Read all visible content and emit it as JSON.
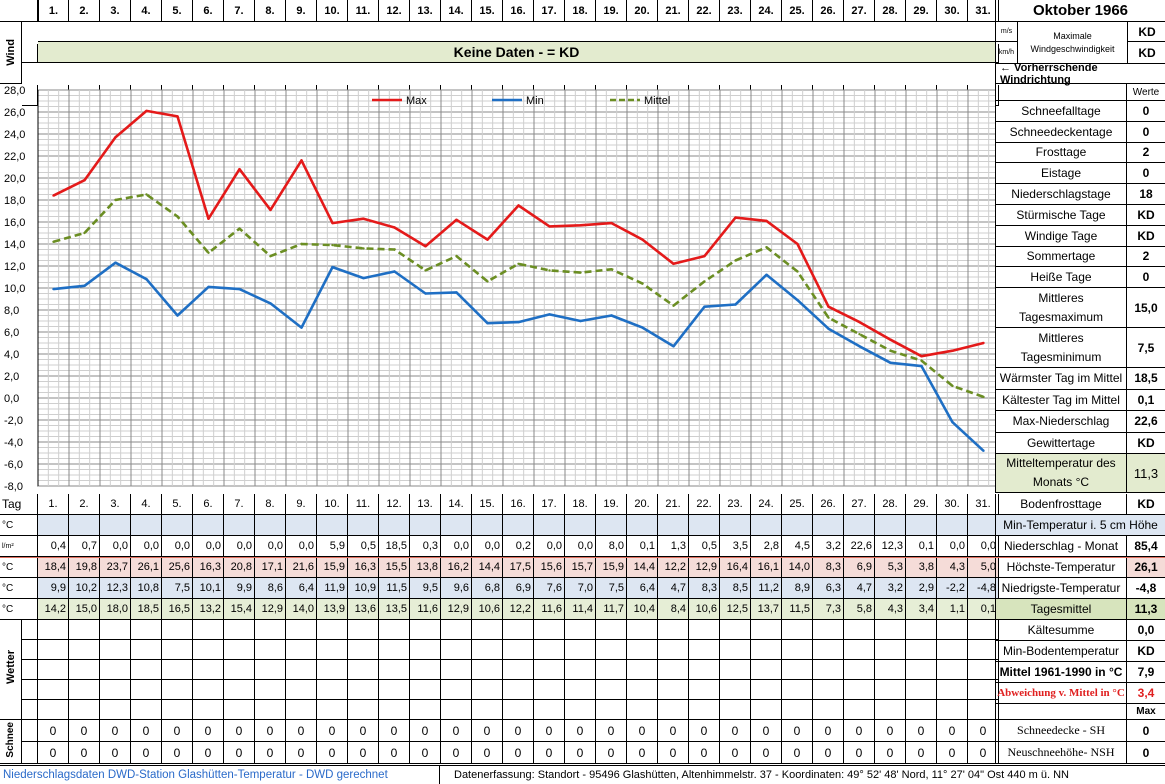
{
  "title": "Oktober 1966",
  "days": [
    "1.",
    "2.",
    "3.",
    "4.",
    "5.",
    "6.",
    "7.",
    "8.",
    "9.",
    "10.",
    "11.",
    "12.",
    "13.",
    "14.",
    "15.",
    "16.",
    "17.",
    "18.",
    "19.",
    "20.",
    "21.",
    "22.",
    "23.",
    "24.",
    "25.",
    "26.",
    "27.",
    "28.",
    "29.",
    "30.",
    "31."
  ],
  "wind": {
    "label": "Wind",
    "banner": "Keine Daten -  = KD",
    "unit_ms": "m/s",
    "unit_kmh": "km/h",
    "max_label_1": "Maximale",
    "max_label_2": "Windgeschwindigkeit",
    "max_ms": "KD",
    "max_kmh": "KD",
    "direction_label": "← Vorherrschende Windrichtung"
  },
  "chart_data": {
    "type": "line",
    "x": [
      1,
      2,
      3,
      4,
      5,
      6,
      7,
      8,
      9,
      10,
      11,
      12,
      13,
      14,
      15,
      16,
      17,
      18,
      19,
      20,
      21,
      22,
      23,
      24,
      25,
      26,
      27,
      28,
      29,
      30,
      31
    ],
    "ylim": [
      -8,
      28
    ],
    "yticks": [
      "28,0",
      "26,0",
      "24,0",
      "22,0",
      "20,0",
      "18,0",
      "16,0",
      "14,0",
      "12,0",
      "10,0",
      "8,0",
      "6,0",
      "4,0",
      "2,0",
      "0,0",
      "-2,0",
      "-4,0",
      "-6,0",
      "-8,0"
    ],
    "grid": true,
    "legend_position": "top",
    "series": [
      {
        "name": "Max",
        "color": "#e41a1a",
        "dash": false,
        "values": [
          18.4,
          19.8,
          23.7,
          26.1,
          25.6,
          16.3,
          20.8,
          17.1,
          21.6,
          15.9,
          16.3,
          15.5,
          13.8,
          16.2,
          14.4,
          17.5,
          15.6,
          15.7,
          15.9,
          14.4,
          12.2,
          12.9,
          16.4,
          16.1,
          14.0,
          8.3,
          6.9,
          5.3,
          3.8,
          4.3,
          5.0
        ]
      },
      {
        "name": "Min",
        "color": "#1f6fc4",
        "dash": false,
        "values": [
          9.9,
          10.2,
          12.3,
          10.8,
          7.5,
          10.1,
          9.9,
          8.6,
          6.4,
          11.9,
          10.9,
          11.5,
          9.5,
          9.6,
          6.8,
          6.9,
          7.6,
          7.0,
          7.5,
          6.4,
          4.7,
          8.3,
          8.5,
          11.2,
          8.9,
          6.3,
          4.7,
          3.2,
          2.9,
          -2.2,
          -4.8
        ]
      },
      {
        "name": "Mittel",
        "color": "#6b8e23",
        "dash": true,
        "values": [
          14.2,
          15.0,
          18.0,
          18.5,
          16.5,
          13.2,
          15.4,
          12.9,
          14.0,
          13.9,
          13.6,
          13.5,
          11.6,
          12.9,
          10.6,
          12.2,
          11.6,
          11.4,
          11.7,
          10.4,
          8.4,
          10.6,
          12.5,
          13.7,
          11.5,
          7.3,
          5.8,
          4.3,
          3.4,
          1.1,
          0.1
        ]
      }
    ]
  },
  "table": {
    "tag_label": "Tag",
    "rows": [
      {
        "unit": "°C",
        "values": [],
        "label": "Min-Temperatur i. 5 cm Höhe",
        "value": "",
        "style": "blue"
      },
      {
        "unit": "l/m²",
        "values": [
          "0,4",
          "0,7",
          "0,0",
          "0,0",
          "0,0",
          "0,0",
          "0,0",
          "0,0",
          "0,0",
          "5,9",
          "0,5",
          "18,5",
          "0,3",
          "0,0",
          "0,0",
          "0,2",
          "0,0",
          "0,0",
          "8,0",
          "0,1",
          "1,3",
          "0,5",
          "3,5",
          "2,8",
          "4,5",
          "3,2",
          "22,6",
          "12,3",
          "0,1",
          "0,0",
          "0,0"
        ],
        "label": "Niederschlag - Monat",
        "value": "85,4",
        "style": "white"
      },
      {
        "unit": "°C",
        "values": [
          "18,4",
          "19,8",
          "23,7",
          "26,1",
          "25,6",
          "16,3",
          "20,8",
          "17,1",
          "21,6",
          "15,9",
          "16,3",
          "15,5",
          "13,8",
          "16,2",
          "14,4",
          "17,5",
          "15,6",
          "15,7",
          "15,9",
          "14,4",
          "12,2",
          "12,9",
          "16,4",
          "16,1",
          "14,0",
          "8,3",
          "6,9",
          "5,3",
          "3,8",
          "4,3",
          "5,0"
        ],
        "label": "Höchste-Temperatur",
        "value": "26,1",
        "style": "red"
      },
      {
        "unit": "°C",
        "values": [
          "9,9",
          "10,2",
          "12,3",
          "10,8",
          "7,5",
          "10,1",
          "9,9",
          "8,6",
          "6,4",
          "11,9",
          "10,9",
          "11,5",
          "9,5",
          "9,6",
          "6,8",
          "6,9",
          "7,6",
          "7,0",
          "7,5",
          "6,4",
          "4,7",
          "8,3",
          "8,5",
          "11,2",
          "8,9",
          "6,3",
          "4,7",
          "3,2",
          "2,9",
          "-2,2",
          "-4,8"
        ],
        "label": "Niedrigste-Temperatur",
        "value": "-4,8",
        "style": "blue"
      },
      {
        "unit": "°C",
        "values": [
          "14,2",
          "15,0",
          "18,0",
          "18,5",
          "16,5",
          "13,2",
          "15,4",
          "12,9",
          "14,0",
          "13,9",
          "13,6",
          "13,5",
          "11,6",
          "12,9",
          "10,6",
          "12,2",
          "11,6",
          "11,4",
          "11,7",
          "10,4",
          "8,4",
          "10,6",
          "12,5",
          "13,7",
          "11,5",
          "7,3",
          "5,8",
          "4,3",
          "3,4",
          "1,1",
          "0,1"
        ],
        "label": "Tagesmittel",
        "value": "11,3",
        "style": "green"
      }
    ],
    "wetter_label": "Wetter",
    "schnee_label": "Schnee",
    "schnee_rows": [
      {
        "values": [
          "0",
          "0",
          "0",
          "0",
          "0",
          "0",
          "0",
          "0",
          "0",
          "0",
          "0",
          "0",
          "0",
          "0",
          "0",
          "0",
          "0",
          "0",
          "0",
          "0",
          "0",
          "0",
          "0",
          "0",
          "0",
          "0",
          "0",
          "0",
          "0",
          "0",
          "0"
        ],
        "label": "Schneedecke -  SH",
        "value": "0"
      },
      {
        "values": [
          "0",
          "0",
          "0",
          "0",
          "0",
          "0",
          "0",
          "0",
          "0",
          "0",
          "0",
          "0",
          "0",
          "0",
          "0",
          "0",
          "0",
          "0",
          "0",
          "0",
          "0",
          "0",
          "0",
          "0",
          "0",
          "0",
          "0",
          "0",
          "0",
          "0",
          "0"
        ],
        "label": "Neuschneehöhe- NSH",
        "value": "0"
      }
    ]
  },
  "stats": {
    "werte_label": "Werte",
    "items": [
      {
        "label": "Schneefalltage",
        "value": "0"
      },
      {
        "label": "Schneedeckentage",
        "value": "0"
      },
      {
        "label": "Frosttage",
        "value": "2"
      },
      {
        "label": "Eistage",
        "value": "0"
      },
      {
        "label": "Niederschlagstage",
        "value": "18"
      },
      {
        "label": "Stürmische Tage",
        "value": "KD"
      },
      {
        "label": "Windige Tage",
        "value": "KD"
      },
      {
        "label": "Sommertage",
        "value": "2"
      },
      {
        "label": "Heiße Tage",
        "value": "0"
      }
    ],
    "mittleres_max_1": "Mittleres",
    "mittleres_max_2": "Tagesmaximum",
    "mittleres_max_value": "15,0",
    "mittleres_min_1": "Mittleres",
    "mittleres_min_2": "Tagesminimum",
    "mittleres_min_value": "7,5",
    "items2": [
      {
        "label": "Wärmster Tag im Mittel",
        "value": "18,5"
      },
      {
        "label": "Kältester Tag im Mittel",
        "value": "0,1"
      },
      {
        "label": "Max-Niederschlag",
        "value": "22,6"
      },
      {
        "label": "Gewittertage",
        "value": "KD"
      }
    ],
    "monats_1": "Mitteltemperatur des",
    "monats_2": "Monats °C",
    "monats_value": "11,3",
    "bodenfrost_label": "Bodenfrosttage",
    "bodenfrost_value": "KD",
    "lower": [
      {
        "label": "Kältesumme",
        "value": "0,0"
      },
      {
        "label": "Min-Bodentemperatur",
        "value": "KD"
      },
      {
        "label": "Mittel 1961-1990 in °C",
        "value": "7,9"
      },
      {
        "label": "Abweichung v. Mittel in °C",
        "value": "3,4"
      }
    ],
    "max_label": "Max"
  },
  "footer": {
    "left": "Niederschlagsdaten DWD-Station Glashütten-Temperatur -  DWD gerechnet",
    "right": "Datenerfassung:  Standort -  95496  Glashütten, Altenhimmelstr. 37 - Koordinaten:  49° 52' 48' Nord,   11° 27' 04\" Ost   440 m ü. NN"
  }
}
